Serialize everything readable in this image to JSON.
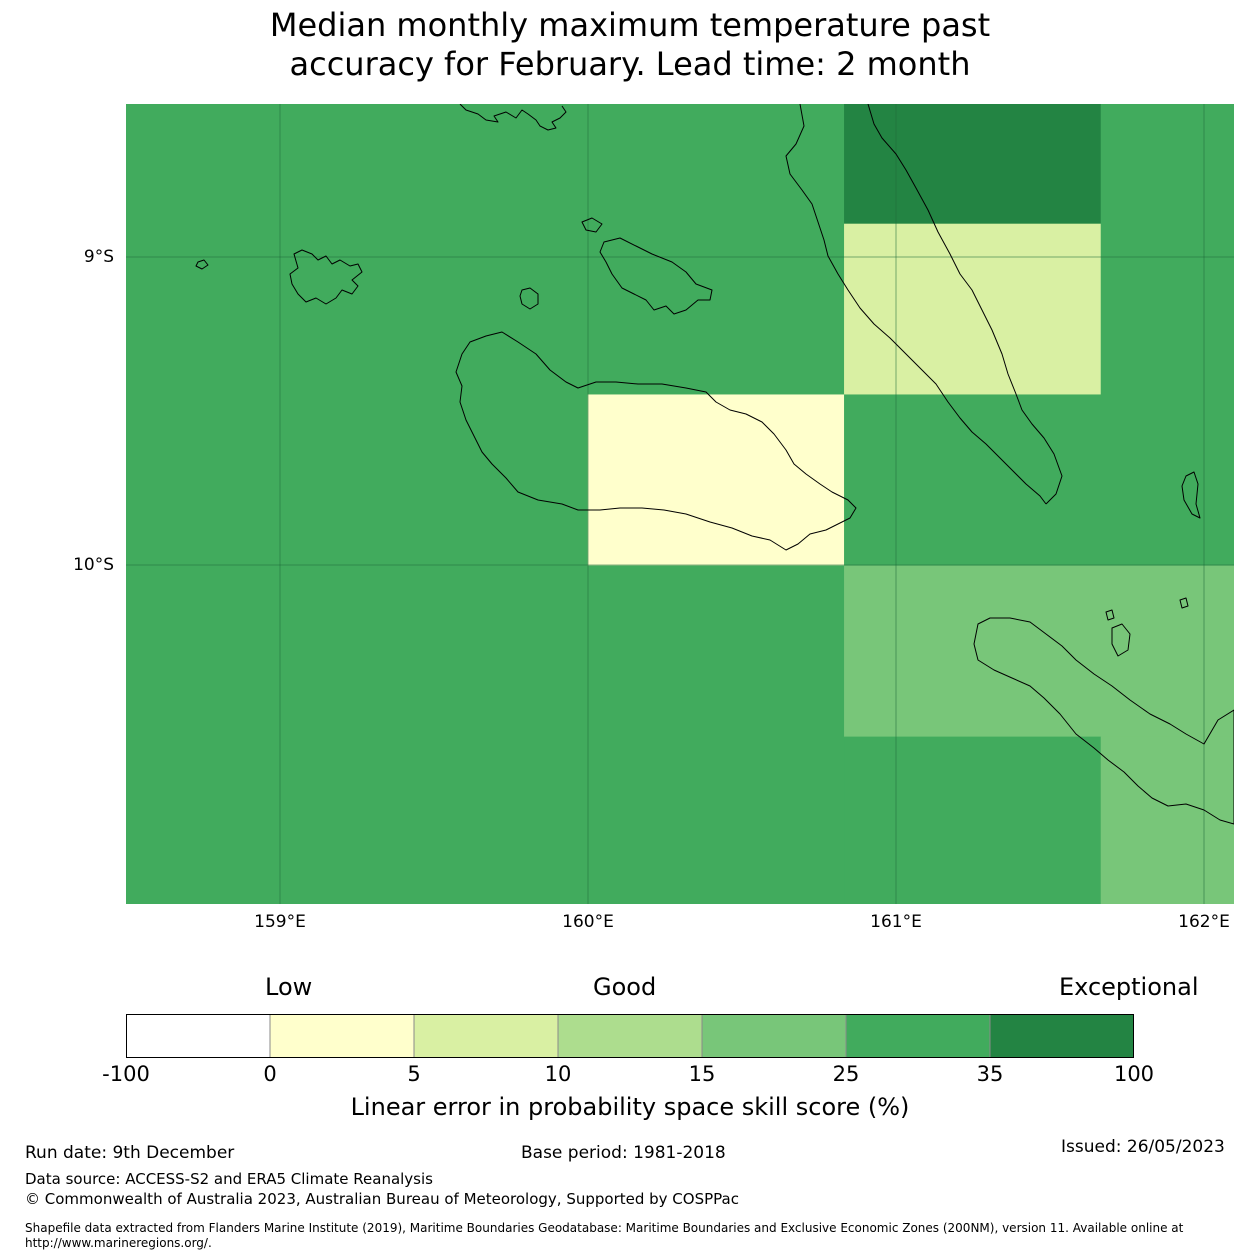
{
  "title": {
    "line1": "Median monthly maximum temperature past",
    "line2": "accuracy for February. Lead time: 2 month"
  },
  "map": {
    "lat_labels": [
      "9°S",
      "10°S"
    ],
    "lon_labels": [
      "159°E",
      "160°E",
      "161°E",
      "162°E"
    ],
    "extent": {
      "lon": [
        158.5,
        162.1
      ],
      "lat": [
        -8.5,
        -11.1
      ]
    },
    "grid_cells": [
      {
        "lon": [
          158.5,
          160.0
        ],
        "lat": [
          -11.1,
          -8.5
        ],
        "category": "25-35"
      },
      {
        "lon": [
          160.0,
          160.833
        ],
        "lat": [
          -9.444,
          -8.5
        ],
        "category": "25-35"
      },
      {
        "lon": [
          160.0,
          160.833
        ],
        "lat": [
          -10.0,
          -9.444
        ],
        "category": "0-5"
      },
      {
        "lon": [
          160.0,
          160.833
        ],
        "lat": [
          -11.1,
          -10.0
        ],
        "category": "25-35"
      },
      {
        "lon": [
          160.833,
          161.667
        ],
        "lat": [
          -8.889,
          -8.5
        ],
        "category": "35-100"
      },
      {
        "lon": [
          160.833,
          161.667
        ],
        "lat": [
          -9.444,
          -8.889
        ],
        "category": "5-10"
      },
      {
        "lon": [
          160.833,
          162.1
        ],
        "lat": [
          -10.0,
          -9.444
        ],
        "category": "25-35"
      },
      {
        "lon": [
          161.667,
          162.1
        ],
        "lat": [
          -9.444,
          -8.5
        ],
        "category": "25-35"
      },
      {
        "lon": [
          160.833,
          162.1
        ],
        "lat": [
          -10.556,
          -10.0
        ],
        "category": "15-25"
      },
      {
        "lon": [
          160.833,
          161.667
        ],
        "lat": [
          -11.1,
          -10.556
        ],
        "category": "25-35"
      },
      {
        "lon": [
          161.667,
          162.1
        ],
        "lat": [
          -11.1,
          -10.556
        ],
        "category": "15-25"
      }
    ]
  },
  "colorbar": {
    "qualitative": [
      "Low",
      "Good",
      "Exceptional"
    ],
    "ticks": [
      "-100",
      "0",
      "5",
      "10",
      "15",
      "25",
      "35",
      "100"
    ],
    "colors": [
      "#ffffff",
      "#ffffcc",
      "#d9f0a3",
      "#addd8e",
      "#78c679",
      "#41ab5d",
      "#238443"
    ],
    "label": "Linear error in probability space skill score (%)"
  },
  "footer": {
    "run_date": "Run date: 9th December",
    "base_period": "Base period: 1981-2018",
    "issued": "Issued: 26/05/2023",
    "data_source": "Data source: ACCESS-S2 and ERA5 Climate Reanalysis",
    "copyright": "© Commonwealth of Australia 2023, Australian Bureau of Meteorology, Supported by COSPPac",
    "shapefile": "Shapefile data extracted from Flanders Marine Institute (2019), Maritime Boundaries Geodatabase: Maritime Boundaries and Exclusive Economic Zones (200NM), version 11. Available online at http://www.marineregions.org/."
  }
}
